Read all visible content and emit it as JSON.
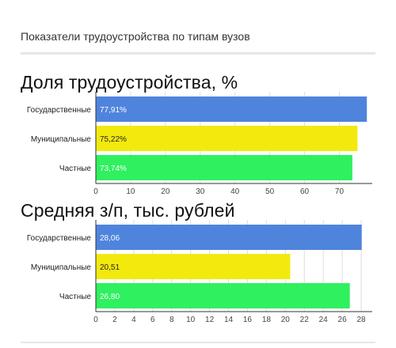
{
  "widget": {
    "title": "Показатели трудоустройства по типам вузов"
  },
  "colors": {
    "state": "#4f84dd",
    "municipal": "#f2ea0d",
    "private": "#2ff05f",
    "grid": "#dddddd",
    "axis": "#333333"
  },
  "chart_data": [
    {
      "type": "bar",
      "orientation": "horizontal",
      "title": "Доля трудоустройства, %",
      "categories": [
        "Государственные",
        "Муниципальные",
        "Частные"
      ],
      "values": [
        77.91,
        75.22,
        73.74
      ],
      "value_labels": [
        "77,91%",
        "75,22%",
        "73,74%"
      ],
      "xlim": [
        0,
        79
      ],
      "xticks": [
        0,
        10,
        20,
        30,
        40,
        50,
        60,
        70
      ],
      "grid": true,
      "bar_colors": [
        "#4f84dd",
        "#f2ea0d",
        "#2ff05f"
      ]
    },
    {
      "type": "bar",
      "orientation": "horizontal",
      "title": "Средняя з/п, тыс. рублей",
      "categories": [
        "Государственные",
        "Муниципальные",
        "Частные"
      ],
      "values": [
        28.06,
        20.51,
        26.8
      ],
      "value_labels": [
        "28,06",
        "20,51",
        "26,80"
      ],
      "xlim": [
        0,
        29
      ],
      "xticks": [
        0,
        2,
        4,
        6,
        8,
        10,
        12,
        14,
        16,
        18,
        20,
        22,
        24,
        26,
        28
      ],
      "grid": true,
      "bar_colors": [
        "#4f84dd",
        "#f2ea0d",
        "#2ff05f"
      ]
    }
  ]
}
